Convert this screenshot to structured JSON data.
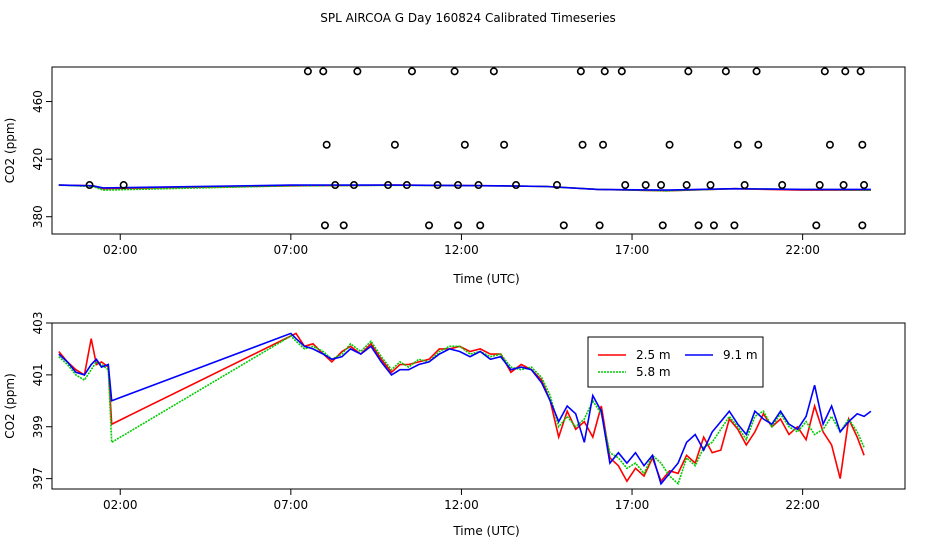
{
  "title": "SPL AIRCOA G  Day 160824  Calibrated Timeseries",
  "colors": {
    "2.5 m": "#ff0000",
    "5.8 m": "#00cc00",
    "9.1 m": "#0000ff"
  },
  "chart_data": [
    {
      "type": "scatter",
      "xlabel": "Time (UTC)",
      "ylabel": "CO2 (ppm)",
      "xlim": [
        0,
        25
      ],
      "ylim": [
        368,
        484
      ],
      "x_ticks": [
        2,
        7,
        12,
        17,
        22
      ],
      "x_tick_labels": [
        "02:00",
        "07:00",
        "12:00",
        "17:00",
        "22:00"
      ],
      "y_ticks": [
        380,
        420,
        460
      ],
      "y_tick_labels": [
        "380",
        "420",
        "460"
      ],
      "cal_points": {
        "x": [
          1.1,
          2.1,
          8.3,
          8.85,
          9.85,
          10.4,
          11.3,
          11.9,
          12.5,
          13.6,
          14.8,
          16.8,
          17.4,
          17.85,
          18.6,
          19.3,
          20.3,
          21.4,
          22.5,
          23.2,
          23.8,
          8.0,
          8.55,
          11.05,
          11.9,
          12.55,
          15.0,
          16.05,
          17.9,
          18.95,
          19.4,
          20.0,
          22.4,
          23.75,
          8.05,
          10.05,
          12.1,
          13.25,
          15.55,
          16.15,
          18.1,
          20.1,
          20.7,
          22.8,
          23.75,
          7.5,
          7.95,
          8.95,
          10.55,
          11.8,
          12.95,
          15.5,
          16.2,
          16.7,
          18.65,
          19.75,
          20.65,
          22.65,
          23.25,
          23.7
        ],
        "y": [
          402,
          402,
          402,
          402,
          402,
          402,
          402,
          402,
          402,
          402,
          402,
          402,
          402,
          402,
          402,
          402,
          402,
          402,
          402,
          402,
          402,
          374,
          374,
          374,
          374,
          374,
          374,
          374,
          374,
          374,
          374,
          374,
          374,
          374,
          430,
          430,
          430,
          430,
          430,
          430,
          430,
          430,
          430,
          430,
          430,
          481,
          481,
          481,
          481,
          481,
          481,
          481,
          481,
          481,
          481,
          481,
          481,
          481,
          481,
          481
        ]
      },
      "series": [
        {
          "name": "2.5 m",
          "x": [
            0.2,
            1.2,
            1.5,
            7.0,
            10.0,
            13.0,
            14.5,
            16.0,
            18.0,
            20.0,
            22.0,
            24.0
          ],
          "values": [
            402,
            401.5,
            399.5,
            401.5,
            402,
            401.5,
            401,
            399,
            398,
            399.5,
            398.5,
            398.5
          ]
        },
        {
          "name": "5.8 m",
          "x": [
            0.2,
            1.2,
            1.5,
            7.0,
            10.0,
            13.0,
            14.5,
            16.0,
            18.0,
            20.0,
            22.0,
            24.0
          ],
          "values": [
            402,
            401,
            398.5,
            401.5,
            401.8,
            401.5,
            401,
            399,
            398,
            399.5,
            399,
            398.5
          ]
        },
        {
          "name": "9.1 m",
          "x": [
            0.2,
            1.2,
            1.5,
            7.0,
            10.0,
            13.0,
            14.5,
            16.0,
            18.0,
            20.0,
            22.0,
            24.0
          ],
          "values": [
            402,
            401.5,
            400,
            402,
            402,
            401.5,
            401,
            399,
            398.5,
            399.5,
            399,
            399
          ]
        }
      ]
    },
    {
      "type": "line",
      "xlabel": "Time (UTC)",
      "ylabel": "CO2 (ppm)",
      "xlim": [
        0,
        25
      ],
      "ylim": [
        396.6,
        403
      ],
      "x_ticks": [
        2,
        7,
        12,
        17,
        22
      ],
      "x_tick_labels": [
        "02:00",
        "07:00",
        "12:00",
        "17:00",
        "22:00"
      ],
      "y_ticks": [
        397,
        399,
        401,
        403
      ],
      "y_tick_labels": [
        "397",
        "399",
        "401",
        "403"
      ],
      "legend_position": "top-right",
      "legend_labels": [
        "2.5 m",
        "9.1 m",
        "5.8 m"
      ],
      "series": [
        {
          "name": "2.5 m",
          "x": [
            0.2,
            0.45,
            0.7,
            0.95,
            1.15,
            1.3,
            1.45,
            1.65,
            1.75,
            7.0,
            7.15,
            7.4,
            7.65,
            7.95,
            8.2,
            8.5,
            8.75,
            9.05,
            9.35,
            9.65,
            9.95,
            10.2,
            10.45,
            10.75,
            11.05,
            11.35,
            11.65,
            11.95,
            12.25,
            12.55,
            12.85,
            13.15,
            13.45,
            13.75,
            14.05,
            14.35,
            14.6,
            14.85,
            15.1,
            15.35,
            15.6,
            15.85,
            16.1,
            16.35,
            16.6,
            16.85,
            17.1,
            17.35,
            17.6,
            17.85,
            18.1,
            18.35,
            18.6,
            18.85,
            19.1,
            19.35,
            19.6,
            19.85,
            20.1,
            20.35,
            20.6,
            20.85,
            21.1,
            21.35,
            21.6,
            21.85,
            22.1,
            22.35,
            22.6,
            22.85,
            23.1,
            23.35,
            23.6,
            23.8
          ],
          "values": [
            401.9,
            401.5,
            401.2,
            401.0,
            402.4,
            401.4,
            401.5,
            401.3,
            399.1,
            402.5,
            402.6,
            402.1,
            402.2,
            401.8,
            401.5,
            401.9,
            402.1,
            401.8,
            402.2,
            401.6,
            401.1,
            401.4,
            401.4,
            401.5,
            401.6,
            402.0,
            402.0,
            402.1,
            401.9,
            402.0,
            401.8,
            401.8,
            401.1,
            401.4,
            401.2,
            400.8,
            400.0,
            398.6,
            399.6,
            398.9,
            399.2,
            398.6,
            399.8,
            397.8,
            397.5,
            396.9,
            397.4,
            397.1,
            397.8,
            396.9,
            397.3,
            397.2,
            397.9,
            397.6,
            398.6,
            398.0,
            398.1,
            399.3,
            398.9,
            398.3,
            398.8,
            399.5,
            399.0,
            399.3,
            398.7,
            399.0,
            398.5,
            399.8,
            398.8,
            398.3,
            397.0,
            399.3,
            398.6,
            397.9
          ]
        },
        {
          "name": "5.8 m",
          "x": [
            0.2,
            0.45,
            0.7,
            0.95,
            1.15,
            1.3,
            1.45,
            1.65,
            1.75,
            7.0,
            7.15,
            7.4,
            7.65,
            7.95,
            8.2,
            8.5,
            8.75,
            9.05,
            9.35,
            9.65,
            9.95,
            10.2,
            10.45,
            10.75,
            11.05,
            11.35,
            11.65,
            11.95,
            12.25,
            12.55,
            12.85,
            13.15,
            13.45,
            13.75,
            14.05,
            14.35,
            14.6,
            14.85,
            15.1,
            15.35,
            15.6,
            15.85,
            16.1,
            16.35,
            16.6,
            16.85,
            17.1,
            17.35,
            17.6,
            17.85,
            18.1,
            18.35,
            18.6,
            18.85,
            19.1,
            19.35,
            19.6,
            19.85,
            20.1,
            20.35,
            20.6,
            20.85,
            21.1,
            21.35,
            21.6,
            21.85,
            22.1,
            22.35,
            22.6,
            22.85,
            23.1,
            23.35,
            23.6,
            23.8
          ],
          "values": [
            401.7,
            401.4,
            401.0,
            400.8,
            401.2,
            401.5,
            401.4,
            401.2,
            398.4,
            402.5,
            402.3,
            402.0,
            402.1,
            401.9,
            401.6,
            401.8,
            402.2,
            401.9,
            402.3,
            401.7,
            401.2,
            401.5,
            401.3,
            401.6,
            401.5,
            401.9,
            402.1,
            402.1,
            401.8,
            401.9,
            401.7,
            401.8,
            401.3,
            401.2,
            401.3,
            400.9,
            400.2,
            399.0,
            399.4,
            399.0,
            399.3,
            400.0,
            399.5,
            398.0,
            397.8,
            397.4,
            397.6,
            397.2,
            397.9,
            397.6,
            397.1,
            396.8,
            397.8,
            397.5,
            398.2,
            398.4,
            398.9,
            399.4,
            399.0,
            398.5,
            399.4,
            399.6,
            399.0,
            399.5,
            399.0,
            398.8,
            399.2,
            398.7,
            398.9,
            399.4,
            398.8,
            399.3,
            398.8,
            398.2
          ]
        },
        {
          "name": "9.1 m",
          "x": [
            0.2,
            0.45,
            0.7,
            0.95,
            1.15,
            1.3,
            1.45,
            1.65,
            1.75,
            7.0,
            7.15,
            7.4,
            7.65,
            7.95,
            8.2,
            8.5,
            8.75,
            9.05,
            9.35,
            9.65,
            9.95,
            10.2,
            10.45,
            10.75,
            11.05,
            11.35,
            11.65,
            11.95,
            12.25,
            12.55,
            12.85,
            13.15,
            13.45,
            13.75,
            14.05,
            14.35,
            14.6,
            14.85,
            15.1,
            15.35,
            15.6,
            15.85,
            16.1,
            16.35,
            16.6,
            16.85,
            17.1,
            17.35,
            17.6,
            17.85,
            18.1,
            18.35,
            18.6,
            18.85,
            19.1,
            19.35,
            19.6,
            19.85,
            20.1,
            20.35,
            20.6,
            20.85,
            21.1,
            21.35,
            21.6,
            21.85,
            22.1,
            22.35,
            22.6,
            22.85,
            23.1,
            23.35,
            23.6,
            23.8,
            24.0
          ],
          "values": [
            401.8,
            401.5,
            401.1,
            401.0,
            401.4,
            401.6,
            401.3,
            401.4,
            400.0,
            402.6,
            402.4,
            402.1,
            402.0,
            401.8,
            401.6,
            401.7,
            402.0,
            401.8,
            402.1,
            401.5,
            401.0,
            401.2,
            401.2,
            401.4,
            401.5,
            401.8,
            402.0,
            401.9,
            401.7,
            401.9,
            401.6,
            401.7,
            401.2,
            401.3,
            401.2,
            400.7,
            400.0,
            399.2,
            399.8,
            399.5,
            398.4,
            400.2,
            399.6,
            397.6,
            398.0,
            397.6,
            398.0,
            397.5,
            397.9,
            396.8,
            397.2,
            397.6,
            398.4,
            398.7,
            398.1,
            398.8,
            399.2,
            399.6,
            399.1,
            398.7,
            399.6,
            399.3,
            399.1,
            399.6,
            399.1,
            398.9,
            399.4,
            400.6,
            399.1,
            399.8,
            398.8,
            399.2,
            399.5,
            399.4,
            399.6
          ]
        }
      ]
    }
  ]
}
